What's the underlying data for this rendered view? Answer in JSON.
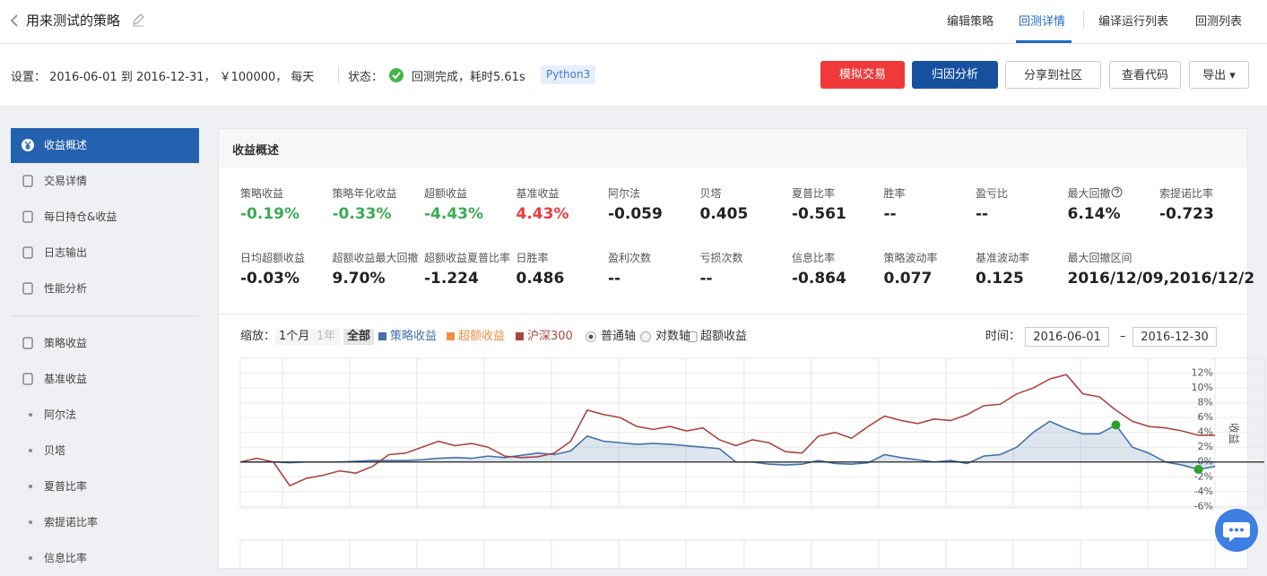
{
  "header": {
    "title": "用来测试的策略",
    "tabs": [
      "编辑策略",
      "回测详情",
      "编译运行列表",
      "回测列表"
    ]
  },
  "settings": "设置： 2016-06-01 到 2016-12-31， ￥100000， 每天",
  "status": {
    "label": "状态：",
    "text": "回测完成，耗时5.61s",
    "badge": "Python3"
  },
  "buttons": [
    "模拟交易",
    "归因分析",
    "分享到社区",
    "查看代码",
    "导出"
  ],
  "sidebar": {
    "items": [
      "收益概述",
      "交易详情",
      "每日持仓&收益",
      "日志输出",
      "性能分析"
    ],
    "groups": [
      "策略收益",
      "基准收益"
    ],
    "sub_items": [
      "阿尔法",
      "贝塔",
      "夏普比率",
      "索提诺比率",
      "信息比率"
    ]
  },
  "panel": {
    "title": "收益概述",
    "metrics": [
      [
        {
          "label": "策略收益",
          "value": "-0.19%"
        },
        {
          "label": "策略年化收益",
          "value": "-0.33%"
        },
        {
          "label": "超额收益",
          "value": "-4.43%"
        },
        {
          "label": "基准收益",
          "value": "4.43%"
        },
        {
          "label": "阿尔法",
          "value": "-0.059"
        },
        {
          "label": "贝塔",
          "value": "0.405"
        },
        {
          "label": "夏普比率",
          "value": "-0.561"
        },
        {
          "label": "胜率",
          "value": "--"
        },
        {
          "label": "盈亏比",
          "value": "--"
        },
        {
          "label": "最大回撤",
          "value": "6.14%"
        },
        {
          "label": "索提诺比率",
          "value": "-0.723"
        }
      ],
      [
        {
          "label": "日均超额收益",
          "value": "-0.03%"
        },
        {
          "label": "超额收益最大回撤",
          "value": "9.70%"
        },
        {
          "label": "超额收益夏普比率",
          "value": "-1.224"
        },
        {
          "label": "日胜率",
          "value": "0.486"
        },
        {
          "label": "盈利次数",
          "value": "--"
        },
        {
          "label": "亏损次数",
          "value": "--"
        },
        {
          "label": "信息比率",
          "value": "-0.864"
        },
        {
          "label": "策略波动率",
          "value": "0.077"
        },
        {
          "label": "基准波动率",
          "value": "0.125"
        },
        {
          "label": "最大回撤区间",
          "value": "2016/12/09,2016/12/2"
        }
      ]
    ]
  },
  "chart_toolbar": {
    "zoom_label": "缩放：",
    "zoom": [
      "1个月",
      "1年",
      "全部"
    ],
    "axis_options": [
      "普通轴",
      "对数轴",
      "超额收益"
    ],
    "time_label": "时间：",
    "from": "2016-06-01",
    "separator": "–",
    "to": "2016-12-30"
  },
  "chart_data": {
    "type": "line",
    "y_label": "收益",
    "ylim": [
      -6.2,
      14
    ],
    "yticks": [
      {
        "value": 12,
        "label": "12%"
      },
      {
        "value": 10,
        "label": "10%"
      },
      {
        "value": 8,
        "label": "8%"
      },
      {
        "value": 6,
        "label": "6%"
      },
      {
        "value": 4,
        "label": "4%"
      },
      {
        "value": 2,
        "label": "2%"
      },
      {
        "value": 0,
        "label": "0%"
      },
      {
        "value": -2,
        "label": "-2%"
      },
      {
        "value": -4,
        "label": "-4%"
      },
      {
        "value": -6,
        "label": "-6%"
      }
    ],
    "grid": true,
    "series": [
      {
        "name": "策略收益",
        "color": "#4572a7",
        "visible": true,
        "values": [
          0,
          0,
          0,
          -0.1,
          0,
          0,
          0,
          0.1,
          0.2,
          0.2,
          0.2,
          0.3,
          0.5,
          0.6,
          0.5,
          0.8,
          0.6,
          0.9,
          1.2,
          1.0,
          1.5,
          3.5,
          2.8,
          2.6,
          2.4,
          2.5,
          2.4,
          2.2,
          2.0,
          1.8,
          0.0,
          0.0,
          -0.3,
          -0.4,
          -0.3,
          0.2,
          -0.2,
          -0.3,
          -0.1,
          1.0,
          0.6,
          0.3,
          0.0,
          0.2,
          -0.2,
          0.8,
          1.0,
          2.0,
          4.0,
          5.5,
          4.5,
          3.8,
          3.8,
          5.0,
          2.0,
          1.2,
          0.0,
          -0.4,
          -1.0,
          -0.6
        ]
      },
      {
        "name": "超额收益",
        "color": "#f28f43",
        "visible": false,
        "values": []
      },
      {
        "name": "沪深300",
        "color": "#aa4643",
        "visible": true,
        "values": [
          0,
          0.5,
          0,
          -3.2,
          -2.2,
          -1.8,
          -1.2,
          -1.5,
          -0.6,
          1.0,
          1.2,
          2.0,
          2.8,
          2.2,
          2.5,
          2.0,
          0.8,
          0.6,
          0.7,
          1.2,
          2.8,
          7.0,
          6.4,
          6.0,
          4.8,
          4.4,
          4.8,
          4.2,
          4.6,
          3.0,
          2.2,
          3.0,
          2.6,
          1.4,
          1.2,
          3.5,
          4.0,
          3.2,
          4.8,
          6.2,
          5.6,
          5.2,
          5.8,
          5.6,
          6.4,
          7.6,
          7.8,
          9.2,
          10.0,
          11.2,
          11.8,
          9.2,
          8.8,
          7.0,
          5.5,
          4.8,
          4.6,
          4.2,
          3.6,
          3.6
        ]
      }
    ]
  }
}
